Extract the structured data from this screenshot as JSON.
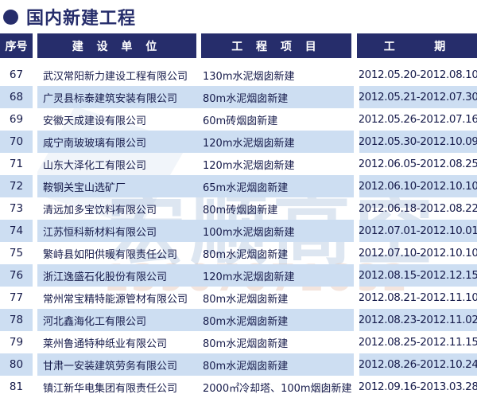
{
  "title": {
    "bullet": "●",
    "text": "国内新建工程"
  },
  "colors": {
    "header_navy": "#262d6b",
    "row_shade_blue": "#cddef2",
    "text_navy": "#151a4a"
  },
  "table": {
    "headers": [
      "序号",
      "建 设 单 位",
      "工 程 项 目",
      "工    期"
    ],
    "rows": [
      {
        "num": "67",
        "company": "武汉常阳新力建设工程有限公司",
        "project": "130m水泥烟囱新建",
        "period": "2012.05.20-2012.08.10"
      },
      {
        "num": "68",
        "company": "广灵县标泰建筑安装有限公司",
        "project": "80m水泥烟囱新建",
        "period": "2012.05.21-2012.07.30"
      },
      {
        "num": "69",
        "company": "安徽天成建设有限公司",
        "project": "60m砖烟囱新建",
        "period": "2012.05.26-2012.07.16"
      },
      {
        "num": "70",
        "company": "咸宁南玻玻璃有限公司",
        "project": "120m水泥烟囱新建",
        "period": "2012.05.30-2012.10.09"
      },
      {
        "num": "71",
        "company": "山东大泽化工有限公司",
        "project": "120m水泥烟囱新建",
        "period": "2012.06.05-2012.08.25"
      },
      {
        "num": "72",
        "company": "鞍钢关宝山选矿厂",
        "project": "65m水泥烟囱新建",
        "period": "2012.06.10-2012.10.10"
      },
      {
        "num": "73",
        "company": "清远加多宝饮料有限公司",
        "project": "80m砖烟囱新建",
        "period": "2012.06.18-2012.08.22"
      },
      {
        "num": "74",
        "company": "江苏恒科新材料有限公司",
        "project": "100m水泥烟囱新建",
        "period": "2012.07.01-2012.10.01"
      },
      {
        "num": "75",
        "company": "繁峙县如阳供暖有限责任公司",
        "project": "80m水泥烟囱新建",
        "period": "2012.07.10-2012.10.10"
      },
      {
        "num": "76",
        "company": "浙江逸盛石化股份有限公司",
        "project": "120m水泥烟囱新建",
        "period": "2012.08.15-2012.12.15"
      },
      {
        "num": "77",
        "company": "常州常宝精特能源管材有限公司",
        "project": "80m水泥烟囱新建",
        "period": "2012.08.21-2012.11.10"
      },
      {
        "num": "78",
        "company": "河北鑫海化工有限公司",
        "project": "80m水泥烟囱新建",
        "period": "2012.08.23-2012.11.02"
      },
      {
        "num": "79",
        "company": "莱州鲁通特种纸业有限公司",
        "project": "80m水泥烟囱新建",
        "period": "2012.08.25-2012.11.15"
      },
      {
        "num": "80",
        "company": "甘肃一安装建筑劳务有限公司",
        "project": "80m水泥烟囱新建",
        "period": "2012.08.26-2012.10.24"
      },
      {
        "num": "81",
        "company": "镇江新华电集团有限责任公司",
        "project": "2000㎡冷却塔、100m烟囱新建",
        "period": "2012.09.16-2013.03.28"
      }
    ]
  },
  "watermark": {
    "brand": "宏顺高空",
    "phone": "13907071682"
  }
}
